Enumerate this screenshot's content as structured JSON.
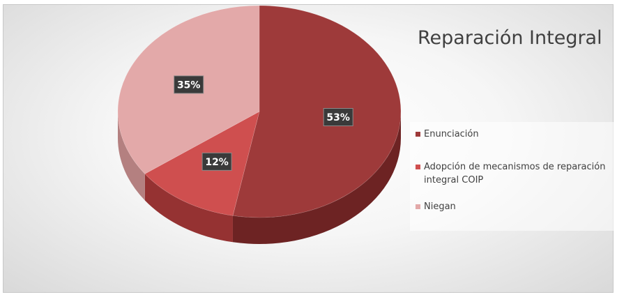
{
  "chart_data": {
    "type": "pie",
    "title": "Reparación Integral",
    "categories": [
      "Enunciación",
      "Adopción de mecanismos de reparación integral COIP",
      "Niegan"
    ],
    "values": [
      53,
      12,
      35
    ],
    "data_labels": [
      "53%",
      "12%",
      "35%"
    ],
    "colors": [
      "#9e3a3a",
      "#cf4f4f",
      "#e3a9a9"
    ],
    "side_colors": [
      "#6d2323",
      "#953232",
      "#b48080"
    ],
    "legend_position": "right",
    "style": "3d"
  }
}
